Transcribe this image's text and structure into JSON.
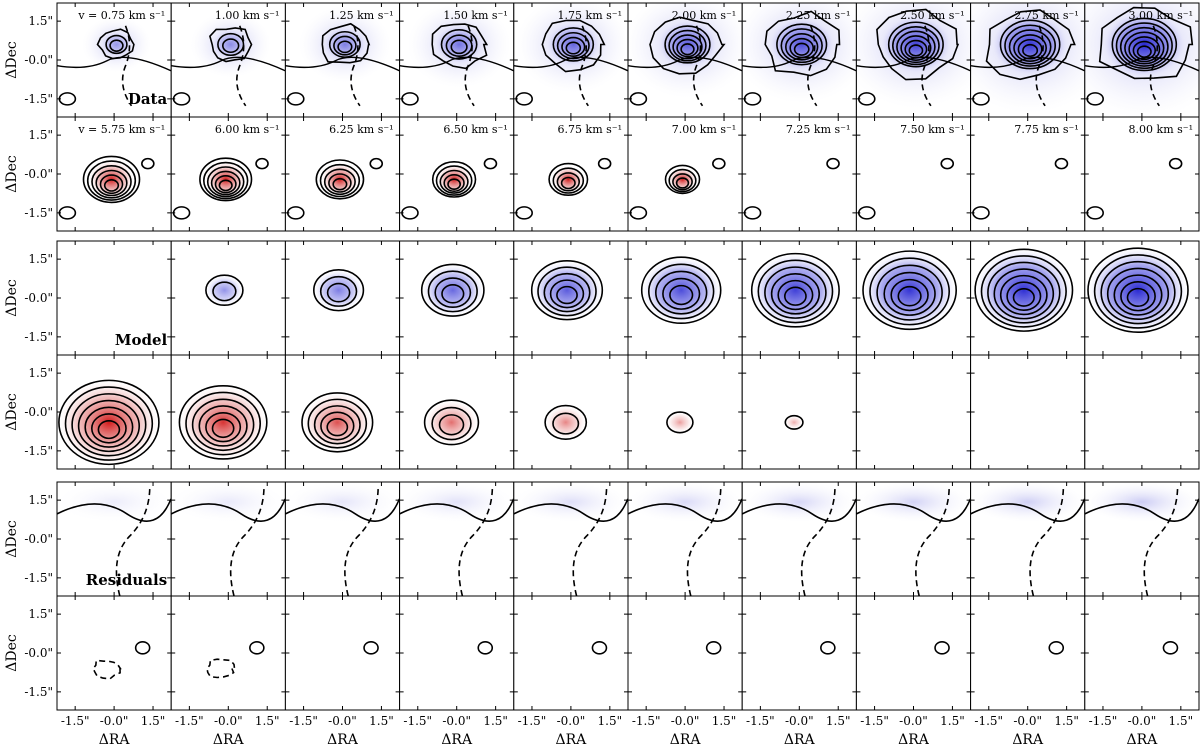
{
  "chart_data": {
    "type": "heatmap",
    "description_free": true,
    "velocity_unit": "km s⁻¹",
    "velocity_prefix": "v = ",
    "velocities_blue": [
      "0.75",
      "1.00",
      "1.25",
      "1.50",
      "1.75",
      "2.00",
      "2.25",
      "2.50",
      "2.75",
      "3.00"
    ],
    "velocities_red": [
      "5.75",
      "6.00",
      "6.25",
      "6.50",
      "6.75",
      "7.00",
      "7.25",
      "7.50",
      "7.75",
      "8.00"
    ],
    "xlabel": "ΔRA",
    "ylabel": "ΔDec",
    "xticks": [
      "-1.5\"",
      "-0.0\"",
      "1.5\""
    ],
    "yticks": [
      "1.5\"",
      "-0.0\"",
      "-1.5\""
    ],
    "tick_values_arcsec": [
      -1.5,
      0.0,
      1.5
    ],
    "panel_range_arcsec": [
      -2.2,
      2.2
    ],
    "groups": [
      {
        "label": "Data",
        "rows": [
          "blue",
          "red"
        ]
      },
      {
        "label": "Model",
        "rows": [
          "blue",
          "red"
        ]
      },
      {
        "label": "Residuals",
        "rows": [
          "blue",
          "red"
        ]
      }
    ],
    "model_peak_blue": [
      0,
      0.25,
      0.4,
      0.55,
      0.65,
      0.75,
      0.85,
      0.92,
      0.97,
      1.0
    ],
    "model_peak_red": [
      1.0,
      0.85,
      0.65,
      0.45,
      0.3,
      0.12,
      0.02,
      0,
      0,
      0
    ],
    "colors": {
      "blue": "#2a2ad8",
      "red": "#d81818",
      "contour": "#000000"
    }
  }
}
